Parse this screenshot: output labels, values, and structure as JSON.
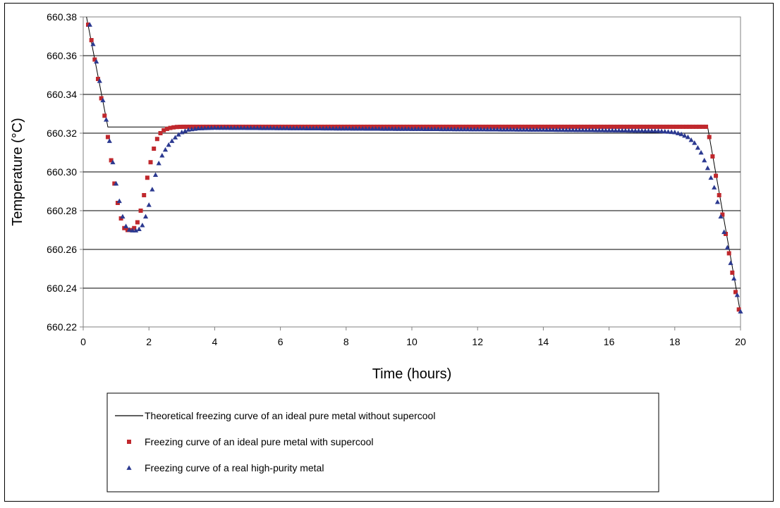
{
  "chart_data": {
    "type": "scatter",
    "title": "",
    "xlabel": "Time  (hours)",
    "ylabel": "Temperature   (°C)",
    "xlim": [
      0,
      20
    ],
    "ylim": [
      660.22,
      660.38
    ],
    "x_ticks": [
      0,
      2,
      4,
      6,
      8,
      10,
      12,
      14,
      16,
      18,
      20
    ],
    "y_ticks": [
      660.22,
      660.24,
      660.26,
      660.28,
      660.3,
      660.32,
      660.34,
      660.36,
      660.38
    ],
    "x_tick_labels": [
      "0",
      "2",
      "4",
      "6",
      "8",
      "10",
      "12",
      "14",
      "16",
      "18",
      "20"
    ],
    "y_tick_labels": [
      "660.22",
      "660.24",
      "660.26",
      "660.28",
      "660.30",
      "660.32",
      "660.34",
      "660.36",
      "660.38"
    ],
    "grid": "horizontal",
    "legend_position": "bottom",
    "series": [
      {
        "name": "Theoretical   freezing  curve  of  an  ideal  pure  metal  without  supercool",
        "marker": "line",
        "color": "#000000",
        "x": [
          0.1,
          0.75,
          19.0,
          20.0
        ],
        "y": [
          660.38,
          660.3232,
          660.3232,
          660.227
        ]
      },
      {
        "name": "Freezing  curve  of  an  ideal  pure  metal  with  supercool",
        "marker": "square",
        "color": "#c0282d",
        "x": [
          0.15,
          0.25,
          0.35,
          0.45,
          0.55,
          0.65,
          0.75,
          0.85,
          0.95,
          1.05,
          1.15,
          1.25,
          1.35,
          1.45,
          1.55,
          1.65,
          1.75,
          1.85,
          1.95,
          2.05,
          2.15,
          2.25,
          2.35,
          2.45,
          2.55,
          2.65,
          2.75,
          2.85,
          3.0,
          3.5,
          4.0,
          6.0,
          8.0,
          10.0,
          12.0,
          14.0,
          16.0,
          18.0,
          18.6,
          19.0,
          19.05,
          19.15,
          19.25,
          19.35,
          19.45,
          19.55,
          19.65,
          19.75,
          19.85,
          19.95
        ],
        "y": [
          660.376,
          660.368,
          660.358,
          660.348,
          660.338,
          660.329,
          660.318,
          660.306,
          660.294,
          660.284,
          660.276,
          660.271,
          660.27,
          660.27,
          660.271,
          660.274,
          660.28,
          660.288,
          660.297,
          660.305,
          660.312,
          660.317,
          660.32,
          660.3215,
          660.3222,
          660.3227,
          660.323,
          660.3232,
          660.3233,
          660.3233,
          660.3233,
          660.3233,
          660.3233,
          660.3233,
          660.3233,
          660.3233,
          660.3233,
          660.3233,
          660.3233,
          660.3233,
          660.318,
          660.308,
          660.298,
          660.288,
          660.278,
          660.268,
          660.258,
          660.248,
          660.238,
          660.229
        ]
      },
      {
        "name": "Freezing  curve  of  a  real  high-purity   metal",
        "marker": "triangle",
        "color": "#2b3990",
        "x": [
          0.2,
          0.3,
          0.4,
          0.5,
          0.6,
          0.7,
          0.8,
          0.9,
          1.0,
          1.1,
          1.2,
          1.3,
          1.4,
          1.5,
          1.6,
          1.7,
          1.8,
          1.9,
          2.0,
          2.1,
          2.2,
          2.3,
          2.4,
          2.5,
          2.6,
          2.7,
          2.8,
          2.9,
          3.0,
          3.2,
          3.5,
          4.0,
          6.0,
          8.0,
          10.0,
          12.0,
          14.0,
          16.0,
          17.5,
          18.0,
          18.2,
          18.4,
          18.6,
          18.8,
          19.0,
          19.2,
          19.4,
          19.6,
          19.8,
          20.0
        ],
        "y": [
          660.376,
          660.366,
          660.357,
          660.347,
          660.337,
          660.327,
          660.316,
          660.305,
          660.294,
          660.285,
          660.277,
          660.272,
          660.2702,
          660.2698,
          660.2698,
          660.2705,
          660.2725,
          660.277,
          660.283,
          660.291,
          660.2985,
          660.3045,
          660.3085,
          660.3115,
          660.314,
          660.316,
          660.3178,
          660.3193,
          660.3205,
          660.3218,
          660.3225,
          660.3228,
          660.3226,
          660.3224,
          660.3222,
          660.322,
          660.3218,
          660.3215,
          660.3212,
          660.3205,
          660.3195,
          660.318,
          660.315,
          660.31,
          660.302,
          660.292,
          660.277,
          660.261,
          660.245,
          660.228
        ]
      }
    ]
  }
}
